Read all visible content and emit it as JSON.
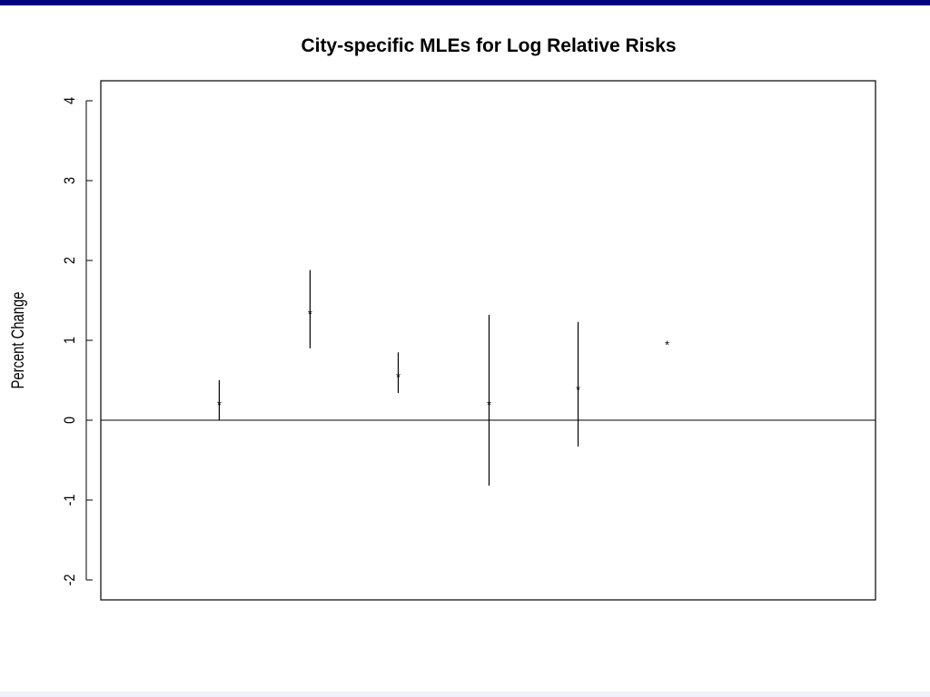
{
  "colors": {
    "top_bar": "#000080",
    "bottom_strip": "#eef0f8",
    "ink": "#000000",
    "background": "#ffffff"
  },
  "chart_data": {
    "type": "scatter",
    "title": "City-specific MLEs for Log Relative Risks",
    "xlabel": "",
    "ylabel": "Percent Change",
    "ylim": [
      -2.25,
      4.25
    ],
    "xlim": [
      0,
      8.7
    ],
    "yticks": [
      -2,
      -1,
      0,
      1,
      2,
      3,
      4
    ],
    "ytick_labels": [
      "-2",
      "-1",
      "0",
      "1",
      "2",
      "3",
      "4"
    ],
    "reference_line": 0,
    "marker": "*",
    "grid": false,
    "points": [
      {
        "x": 1.33,
        "estimate": 0.22,
        "lower": 0.0,
        "upper": 0.5
      },
      {
        "x": 2.35,
        "estimate": 1.36,
        "lower": 0.9,
        "upper": 1.88
      },
      {
        "x": 3.34,
        "estimate": 0.57,
        "lower": 0.34,
        "upper": 0.85
      },
      {
        "x": 4.36,
        "estimate": 0.22,
        "lower": -0.82,
        "upper": 1.32
      },
      {
        "x": 5.36,
        "estimate": 0.41,
        "lower": -0.33,
        "upper": 1.23
      },
      {
        "x": 6.36,
        "estimate": 0.97,
        "lower": null,
        "upper": null
      }
    ]
  }
}
